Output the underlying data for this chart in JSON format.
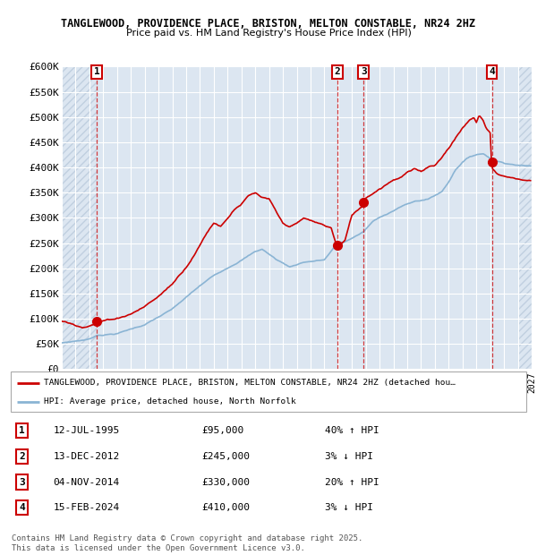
{
  "title_line1": "TANGLEWOOD, PROVIDENCE PLACE, BRISTON, MELTON CONSTABLE, NR24 2HZ",
  "title_line2": "Price paid vs. HM Land Registry's House Price Index (HPI)",
  "ylim": [
    0,
    600000
  ],
  "yticks": [
    0,
    50000,
    100000,
    150000,
    200000,
    250000,
    300000,
    350000,
    400000,
    450000,
    500000,
    550000,
    600000
  ],
  "ytick_labels": [
    "£0",
    "£50K",
    "£100K",
    "£150K",
    "£200K",
    "£250K",
    "£300K",
    "£350K",
    "£400K",
    "£450K",
    "£500K",
    "£550K",
    "£600K"
  ],
  "xlim_start": 1993.0,
  "xlim_end": 2027.0,
  "bg_color": "#dce6f1",
  "hatch_color": "#c0cfe0",
  "grid_color": "#ffffff",
  "red_color": "#cc0000",
  "blue_color": "#8ab4d4",
  "sales": [
    {
      "num": 1,
      "year": 1995.53,
      "price": 95000,
      "label": "1"
    },
    {
      "num": 2,
      "year": 2012.95,
      "price": 245000,
      "label": "2"
    },
    {
      "num": 3,
      "year": 2014.84,
      "price": 330000,
      "label": "3"
    },
    {
      "num": 4,
      "year": 2024.12,
      "price": 410000,
      "label": "4"
    }
  ],
  "legend_red": "TANGLEWOOD, PROVIDENCE PLACE, BRISTON, MELTON CONSTABLE, NR24 2HZ (detached hou…",
  "legend_blue": "HPI: Average price, detached house, North Norfolk",
  "table_entries": [
    {
      "num": "1",
      "date": "12-JUL-1995",
      "price": "£95,000",
      "hpi": "40% ↑ HPI"
    },
    {
      "num": "2",
      "date": "13-DEC-2012",
      "price": "£245,000",
      "hpi": "3% ↓ HPI"
    },
    {
      "num": "3",
      "date": "04-NOV-2014",
      "price": "£330,000",
      "hpi": "20% ↑ HPI"
    },
    {
      "num": "4",
      "date": "15-FEB-2024",
      "price": "£410,000",
      "hpi": "3% ↓ HPI"
    }
  ],
  "footer": "Contains HM Land Registry data © Crown copyright and database right 2025.\nThis data is licensed under the Open Government Licence v3.0.",
  "hpi_waypoints": [
    [
      1993.0,
      52000
    ],
    [
      1995.0,
      60000
    ],
    [
      1995.53,
      68000
    ],
    [
      1997.0,
      72000
    ],
    [
      1999.0,
      90000
    ],
    [
      2001.0,
      120000
    ],
    [
      2003.0,
      165000
    ],
    [
      2004.0,
      185000
    ],
    [
      2005.5,
      210000
    ],
    [
      2007.0,
      235000
    ],
    [
      2007.5,
      240000
    ],
    [
      2008.5,
      220000
    ],
    [
      2009.5,
      205000
    ],
    [
      2010.5,
      215000
    ],
    [
      2012.0,
      220000
    ],
    [
      2012.95,
      252000
    ],
    [
      2013.5,
      255000
    ],
    [
      2014.84,
      275000
    ],
    [
      2015.5,
      295000
    ],
    [
      2016.5,
      310000
    ],
    [
      2017.5,
      325000
    ],
    [
      2018.5,
      335000
    ],
    [
      2019.5,
      340000
    ],
    [
      2020.5,
      355000
    ],
    [
      2021.0,
      375000
    ],
    [
      2021.5,
      400000
    ],
    [
      2022.0,
      415000
    ],
    [
      2022.5,
      425000
    ],
    [
      2023.0,
      430000
    ],
    [
      2023.5,
      432000
    ],
    [
      2024.12,
      422000
    ],
    [
      2024.5,
      418000
    ],
    [
      2025.0,
      415000
    ],
    [
      2026.5,
      410000
    ]
  ],
  "red_waypoints": [
    [
      1993.0,
      95000
    ],
    [
      1994.0,
      88000
    ],
    [
      1994.5,
      86000
    ],
    [
      1995.0,
      90000
    ],
    [
      1995.53,
      95000
    ],
    [
      1996.0,
      99000
    ],
    [
      1997.0,
      105000
    ],
    [
      1998.0,
      115000
    ],
    [
      1999.0,
      130000
    ],
    [
      2000.0,
      150000
    ],
    [
      2001.0,
      175000
    ],
    [
      2002.0,
      210000
    ],
    [
      2003.0,
      255000
    ],
    [
      2003.5,
      280000
    ],
    [
      2004.0,
      300000
    ],
    [
      2004.5,
      295000
    ],
    [
      2005.0,
      310000
    ],
    [
      2005.5,
      330000
    ],
    [
      2006.0,
      340000
    ],
    [
      2006.5,
      355000
    ],
    [
      2007.0,
      360000
    ],
    [
      2007.5,
      350000
    ],
    [
      2008.0,
      345000
    ],
    [
      2008.5,
      320000
    ],
    [
      2009.0,
      295000
    ],
    [
      2009.5,
      290000
    ],
    [
      2010.0,
      295000
    ],
    [
      2010.5,
      305000
    ],
    [
      2011.0,
      300000
    ],
    [
      2011.5,
      295000
    ],
    [
      2012.0,
      290000
    ],
    [
      2012.5,
      285000
    ],
    [
      2012.95,
      245000
    ],
    [
      2013.0,
      248000
    ],
    [
      2013.5,
      260000
    ],
    [
      2014.0,
      310000
    ],
    [
      2014.84,
      330000
    ],
    [
      2015.0,
      345000
    ],
    [
      2015.5,
      355000
    ],
    [
      2016.0,
      365000
    ],
    [
      2016.5,
      375000
    ],
    [
      2017.0,
      385000
    ],
    [
      2017.5,
      390000
    ],
    [
      2018.0,
      400000
    ],
    [
      2018.5,
      405000
    ],
    [
      2019.0,
      400000
    ],
    [
      2019.5,
      410000
    ],
    [
      2020.0,
      415000
    ],
    [
      2020.5,
      430000
    ],
    [
      2021.0,
      450000
    ],
    [
      2021.5,
      470000
    ],
    [
      2022.0,
      490000
    ],
    [
      2022.5,
      505000
    ],
    [
      2022.8,
      510000
    ],
    [
      2023.0,
      500000
    ],
    [
      2023.2,
      515000
    ],
    [
      2023.5,
      505000
    ],
    [
      2023.7,
      490000
    ],
    [
      2024.0,
      480000
    ],
    [
      2024.12,
      410000
    ],
    [
      2024.5,
      400000
    ],
    [
      2025.0,
      395000
    ],
    [
      2026.0,
      390000
    ],
    [
      2026.5,
      388000
    ]
  ]
}
